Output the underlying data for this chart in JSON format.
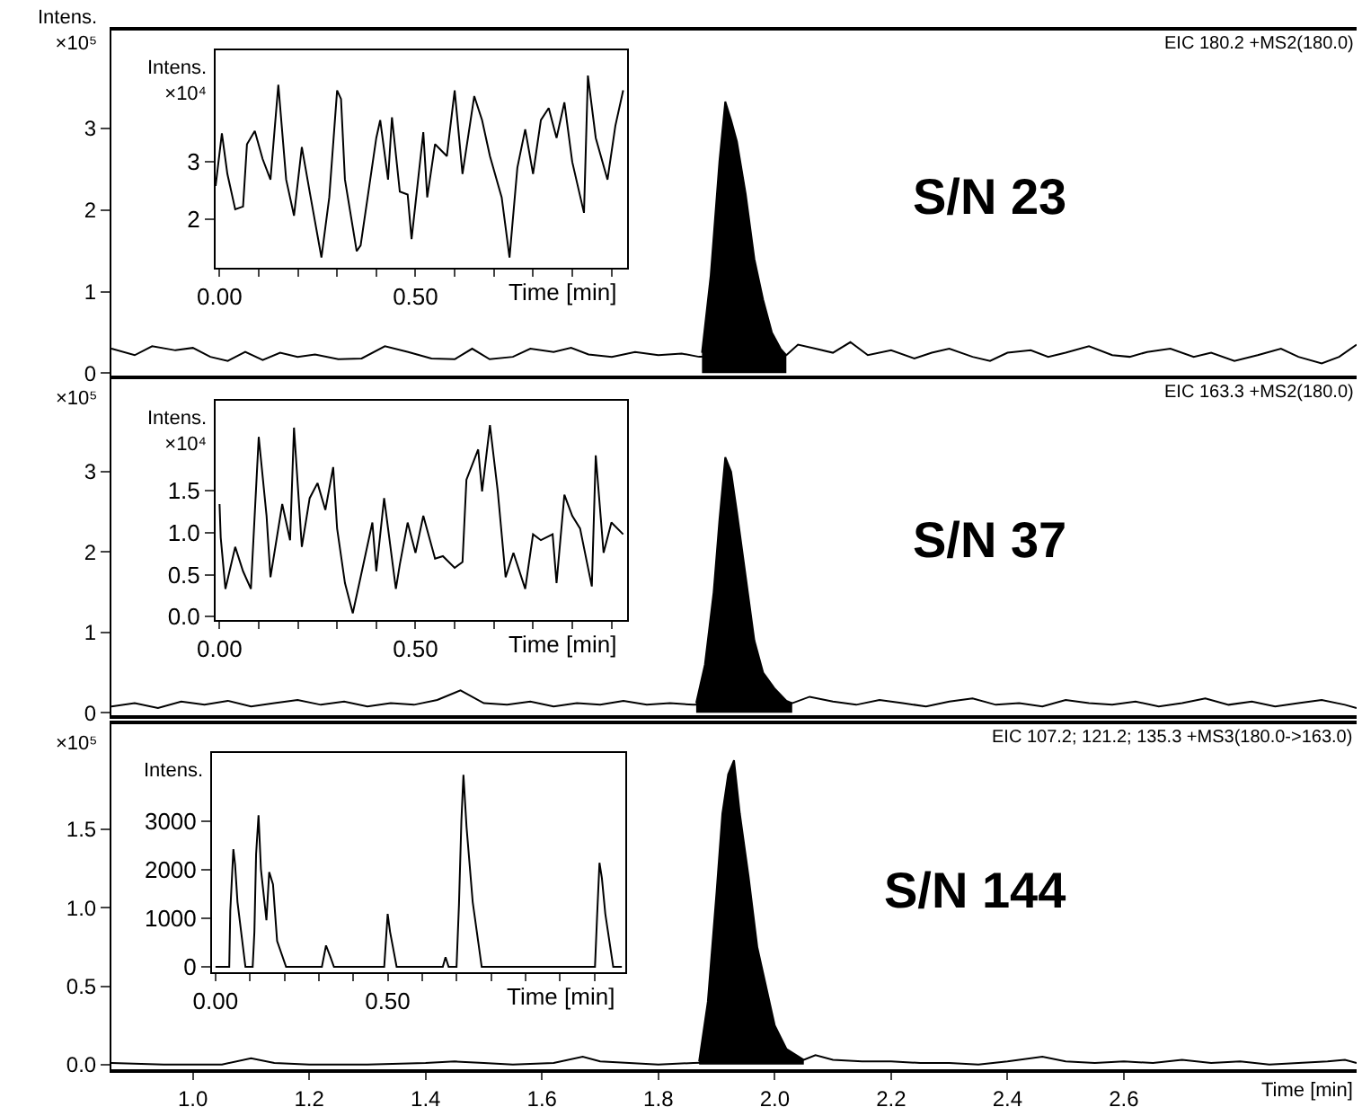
{
  "chart_data": [
    {
      "type": "line",
      "title": "EIC 180.2 +MS2(180.0)",
      "ylabel": "Intens. ×10⁵",
      "annotations": [
        "S/N 23"
      ],
      "xlim": [
        0.86,
        3.0
      ],
      "ylim": [
        -0.03,
        4.2
      ],
      "yticks": [
        0,
        1,
        2,
        3
      ],
      "tick_labels": "y",
      "series": [
        {
          "color": "#000000",
          "x": [
            0.86,
            0.9,
            0.93,
            0.97,
            1.0,
            1.03,
            1.06,
            1.09,
            1.12,
            1.15,
            1.18,
            1.21,
            1.25,
            1.29,
            1.33,
            1.37,
            1.41,
            1.45,
            1.48,
            1.51,
            1.55,
            1.58,
            1.62,
            1.65,
            1.68,
            1.72,
            1.76,
            1.8,
            1.84,
            1.87,
            2.02,
            2.04,
            2.07,
            2.1,
            2.13,
            2.16,
            2.2,
            2.24,
            2.27,
            2.3,
            2.34,
            2.37,
            2.4,
            2.44,
            2.47,
            2.5,
            2.54,
            2.58,
            2.61,
            2.64,
            2.68,
            2.72,
            2.75,
            2.79,
            2.83,
            2.87,
            2.9,
            2.94,
            2.97,
            3.0
          ],
          "values": [
            0.3,
            0.22,
            0.33,
            0.28,
            0.31,
            0.2,
            0.15,
            0.26,
            0.16,
            0.25,
            0.2,
            0.23,
            0.17,
            0.18,
            0.33,
            0.26,
            0.18,
            0.17,
            0.3,
            0.17,
            0.2,
            0.3,
            0.26,
            0.31,
            0.23,
            0.2,
            0.26,
            0.22,
            0.24,
            0.2,
            0.22,
            0.35,
            0.3,
            0.25,
            0.38,
            0.22,
            0.28,
            0.18,
            0.25,
            0.3,
            0.2,
            0.15,
            0.25,
            0.28,
            0.2,
            0.25,
            0.33,
            0.22,
            0.2,
            0.26,
            0.3,
            0.2,
            0.25,
            0.15,
            0.22,
            0.3,
            0.2,
            0.12,
            0.2,
            0.35
          ]
        },
        {
          "type": "area",
          "color": "#000000",
          "x": [
            1.875,
            1.89,
            1.905,
            1.915,
            1.925,
            1.935,
            1.95,
            1.965,
            1.98,
            1.995,
            2.01,
            2.02
          ],
          "values": [
            0.25,
            1.2,
            2.6,
            3.33,
            3.1,
            2.84,
            2.2,
            1.4,
            0.9,
            0.5,
            0.3,
            0.22
          ]
        }
      ]
    },
    {
      "type": "line",
      "ylabel": "Intens. ×10⁴",
      "xlabel": "Time [min]",
      "xlim": [
        -0.01,
        1.04
      ],
      "ylim": [
        1.15,
        4.95
      ],
      "xticks": [
        {
          "value": 0,
          "label": "0.00"
        },
        {
          "value": 0.1,
          "label": null
        },
        {
          "value": 0.2,
          "label": null
        },
        {
          "value": 0.3,
          "label": null
        },
        {
          "value": 0.4,
          "label": null
        },
        {
          "value": 0.5,
          "label": "0.50"
        },
        {
          "value": 0.6,
          "label": null
        },
        {
          "value": 0.7,
          "label": null
        },
        {
          "value": 0.8,
          "label": null
        },
        {
          "value": 0.9,
          "label": null
        },
        {
          "value": 1.0,
          "label": null
        }
      ],
      "yticks": [
        2,
        3
      ],
      "series": [
        {
          "color": "#000000",
          "x": [
            -0.01,
            0.006,
            0.02,
            0.04,
            0.06,
            0.07,
            0.09,
            0.11,
            0.13,
            0.15,
            0.17,
            0.19,
            0.21,
            0.23,
            0.26,
            0.28,
            0.3,
            0.31,
            0.32,
            0.35,
            0.36,
            0.38,
            0.4,
            0.41,
            0.43,
            0.44,
            0.46,
            0.48,
            0.49,
            0.52,
            0.53,
            0.55,
            0.58,
            0.6,
            0.62,
            0.65,
            0.67,
            0.69,
            0.72,
            0.74,
            0.76,
            0.78,
            0.8,
            0.82,
            0.84,
            0.86,
            0.88,
            0.9,
            0.93,
            0.94,
            0.96,
            0.99,
            1.01,
            1.03
          ],
          "values": [
            2.58,
            3.5,
            2.79,
            2.17,
            2.22,
            3.31,
            3.54,
            3.05,
            2.69,
            4.35,
            2.69,
            2.06,
            3.26,
            2.48,
            1.33,
            2.38,
            4.25,
            4.1,
            2.69,
            1.44,
            1.54,
            2.48,
            3.42,
            3.73,
            2.69,
            3.78,
            2.48,
            2.43,
            1.65,
            3.52,
            2.38,
            3.31,
            3.1,
            4.25,
            2.79,
            4.15,
            3.73,
            3.1,
            2.38,
            1.33,
            2.9,
            3.57,
            2.79,
            3.73,
            3.94,
            3.42,
            4.04,
            3.0,
            2.11,
            4.51,
            3.42,
            2.69,
            3.63,
            4.25
          ]
        }
      ]
    },
    {
      "type": "line",
      "title": "EIC 163.3 +MS2(180.0)",
      "ylabel": "×10⁵",
      "annotations": [
        "S/N 37"
      ],
      "xlim": [
        0.86,
        3.0
      ],
      "ylim": [
        -0.03,
        4.15
      ],
      "yticks": [
        0,
        1,
        2,
        3
      ],
      "tick_labels": "y",
      "series": [
        {
          "color": "#000000",
          "x": [
            0.86,
            0.9,
            0.94,
            0.98,
            1.02,
            1.06,
            1.1,
            1.14,
            1.18,
            1.22,
            1.26,
            1.3,
            1.34,
            1.38,
            1.42,
            1.46,
            1.5,
            1.54,
            1.58,
            1.62,
            1.66,
            1.7,
            1.74,
            1.78,
            1.82,
            1.86,
            2.03,
            2.06,
            2.1,
            2.14,
            2.18,
            2.22,
            2.26,
            2.3,
            2.34,
            2.38,
            2.42,
            2.46,
            2.5,
            2.54,
            2.58,
            2.62,
            2.66,
            2.7,
            2.74,
            2.78,
            2.82,
            2.86,
            2.9,
            2.94,
            2.98,
            3.0
          ],
          "values": [
            0.08,
            0.12,
            0.06,
            0.14,
            0.1,
            0.15,
            0.08,
            0.12,
            0.16,
            0.1,
            0.14,
            0.08,
            0.12,
            0.1,
            0.16,
            0.28,
            0.12,
            0.1,
            0.14,
            0.08,
            0.12,
            0.1,
            0.15,
            0.1,
            0.12,
            0.1,
            0.12,
            0.2,
            0.14,
            0.1,
            0.16,
            0.12,
            0.08,
            0.14,
            0.18,
            0.1,
            0.12,
            0.08,
            0.16,
            0.12,
            0.1,
            0.14,
            0.08,
            0.12,
            0.18,
            0.1,
            0.14,
            0.08,
            0.12,
            0.16,
            0.1,
            0.06
          ]
        },
        {
          "type": "area",
          "color": "#000000",
          "x": [
            1.865,
            1.88,
            1.895,
            1.905,
            1.915,
            1.925,
            1.935,
            1.95,
            1.965,
            1.98,
            2.0,
            2.02,
            2.03
          ],
          "values": [
            0.12,
            0.6,
            1.5,
            2.4,
            3.18,
            3.0,
            2.5,
            1.7,
            0.9,
            0.5,
            0.3,
            0.15,
            0.12
          ]
        }
      ]
    },
    {
      "type": "line",
      "ylabel": "Intens. ×10⁴",
      "xlabel": "Time [min]",
      "xlim": [
        -0.01,
        1.04
      ],
      "ylim": [
        -0.04,
        2.57
      ],
      "xticks": [
        {
          "value": 0,
          "label": "0.00"
        },
        {
          "value": 0.1,
          "label": null
        },
        {
          "value": 0.2,
          "label": null
        },
        {
          "value": 0.3,
          "label": null
        },
        {
          "value": 0.4,
          "label": null
        },
        {
          "value": 0.5,
          "label": "0.50"
        },
        {
          "value": 0.6,
          "label": null
        },
        {
          "value": 0.7,
          "label": null
        },
        {
          "value": 0.8,
          "label": null
        },
        {
          "value": 0.9,
          "label": null
        },
        {
          "value": 1.0,
          "label": null
        }
      ],
      "yticks": [
        {
          "value": 0,
          "label": "0.0"
        },
        {
          "value": 0.5,
          "label": "0.5"
        },
        {
          "value": 1,
          "label": "1.0"
        },
        {
          "value": 1.5,
          "label": "1.5"
        }
      ],
      "series": [
        {
          "color": "#000000",
          "x": [
            0,
            0.003,
            0.015,
            0.04,
            0.06,
            0.08,
            0.1,
            0.12,
            0.13,
            0.16,
            0.18,
            0.19,
            0.21,
            0.23,
            0.25,
            0.27,
            0.29,
            0.3,
            0.32,
            0.34,
            0.36,
            0.39,
            0.4,
            0.42,
            0.45,
            0.46,
            0.48,
            0.5,
            0.52,
            0.55,
            0.57,
            0.6,
            0.62,
            0.63,
            0.66,
            0.67,
            0.69,
            0.71,
            0.73,
            0.75,
            0.78,
            0.8,
            0.82,
            0.85,
            0.86,
            0.88,
            0.9,
            0.92,
            0.95,
            0.96,
            0.98,
            1.0,
            1.03
          ],
          "values": [
            1.34,
            0.94,
            0.33,
            0.83,
            0.54,
            0.33,
            2.14,
            1.2,
            0.47,
            1.34,
            0.91,
            2.25,
            0.83,
            1.41,
            1.59,
            1.27,
            1.78,
            1.05,
            0.4,
            0.04,
            0.47,
            1.12,
            0.54,
            1.41,
            0.33,
            0.62,
            1.12,
            0.76,
            1.2,
            0.69,
            0.72,
            0.58,
            0.65,
            1.63,
            1.99,
            1.49,
            2.28,
            1.49,
            0.47,
            0.76,
            0.33,
            0.98,
            0.91,
            0.98,
            0.4,
            1.45,
            1.2,
            1.05,
            0.36,
            1.92,
            0.76,
            1.12,
            0.98
          ]
        }
      ]
    },
    {
      "type": "line",
      "title": "EIC 107.2; 121.2; 135.3 +MS3(180.0->163.0)",
      "ylabel": "×10⁵",
      "xlabel": "Time [min]",
      "annotations": [
        "S/N 144"
      ],
      "xlim": [
        0.86,
        3.0
      ],
      "ylim": [
        -0.03,
        2.17
      ],
      "xticks": [
        {
          "value": 1.0,
          "label": "1.0"
        },
        {
          "value": 1.2,
          "label": "1.2"
        },
        {
          "value": 1.4,
          "label": "1.4"
        },
        {
          "value": 1.6,
          "label": "1.6"
        },
        {
          "value": 1.8,
          "label": "1.8"
        },
        {
          "value": 2.0,
          "label": "2.0"
        },
        {
          "value": 2.2,
          "label": "2.2"
        },
        {
          "value": 2.4,
          "label": "2.4"
        },
        {
          "value": 2.6,
          "label": "2.6"
        }
      ],
      "yticks": [
        {
          "value": 0,
          "label": "0.0"
        },
        {
          "value": 0.5,
          "label": "0.5"
        },
        {
          "value": 1,
          "label": "1.0"
        },
        {
          "value": 1.5,
          "label": "1.5"
        }
      ],
      "series": [
        {
          "color": "#000000",
          "x": [
            0.86,
            0.95,
            1.05,
            1.1,
            1.14,
            1.2,
            1.3,
            1.4,
            1.45,
            1.5,
            1.55,
            1.62,
            1.67,
            1.7,
            1.75,
            1.8,
            1.86,
            2.05,
            2.07,
            2.1,
            2.15,
            2.2,
            2.25,
            2.3,
            2.35,
            2.4,
            2.46,
            2.5,
            2.55,
            2.6,
            2.65,
            2.7,
            2.75,
            2.8,
            2.85,
            2.9,
            2.95,
            2.98,
            3.0
          ],
          "values": [
            0.01,
            0,
            0,
            0.04,
            0.01,
            0,
            0,
            0.01,
            0.02,
            0.01,
            0,
            0.01,
            0.05,
            0.02,
            0.01,
            0,
            0.01,
            0.03,
            0.06,
            0.03,
            0.02,
            0.02,
            0.01,
            0.01,
            0,
            0.02,
            0.05,
            0.02,
            0.01,
            0.02,
            0.01,
            0.03,
            0.01,
            0.02,
            0,
            0.01,
            0.02,
            0.03,
            0.01
          ]
        },
        {
          "type": "area",
          "color": "#000000",
          "x": [
            1.87,
            1.885,
            1.9,
            1.91,
            1.92,
            1.93,
            1.94,
            1.955,
            1.97,
            1.985,
            2.0,
            2.02,
            2.05
          ],
          "values": [
            0.02,
            0.4,
            1.1,
            1.6,
            1.85,
            1.94,
            1.6,
            1.2,
            0.75,
            0.5,
            0.25,
            0.1,
            0.03
          ]
        }
      ]
    },
    {
      "type": "line",
      "ylabel": "Intens.",
      "xlabel": "Time [min]",
      "xlim": [
        -0.01,
        1.19
      ],
      "ylim": [
        -110,
        4400
      ],
      "xticks": [
        {
          "value": 0,
          "label": "0.00"
        },
        {
          "value": 0.1,
          "label": null
        },
        {
          "value": 0.2,
          "label": null
        },
        {
          "value": 0.3,
          "label": null
        },
        {
          "value": 0.4,
          "label": null
        },
        {
          "value": 0.5,
          "label": "0.50"
        },
        {
          "value": 0.6,
          "label": null
        },
        {
          "value": 0.7,
          "label": null
        },
        {
          "value": 0.8,
          "label": null
        },
        {
          "value": 0.9,
          "label": null
        },
        {
          "value": 1.0,
          "label": null
        },
        {
          "value": 1.1,
          "label": null
        }
      ],
      "yticks": [
        0,
        1000,
        2000,
        3000
      ],
      "series": [
        {
          "color": "#000000",
          "x": [
            0,
            0.04,
            0.043,
            0.052,
            0.057,
            0.064,
            0.087,
            0.108,
            0.113,
            0.118,
            0.125,
            0.132,
            0.148,
            0.156,
            0.167,
            0.179,
            0.205,
            0.309,
            0.321,
            0.333,
            0.344,
            0.49,
            0.5,
            0.507,
            0.526,
            0.66,
            0.668,
            0.677,
            0.7,
            0.707,
            0.714,
            0.72,
            0.729,
            0.747,
            0.773,
            1.102,
            1.108,
            1.115,
            1.122,
            1.132,
            1.155,
            1.18
          ],
          "values": [
            0,
            0,
            1150,
            2420,
            2100,
            1330,
            0,
            0,
            720,
            2320,
            3120,
            2010,
            960,
            1950,
            1700,
            530,
            0,
            0,
            440,
            220,
            0,
            0,
            1090,
            720,
            0,
            0,
            200,
            0,
            0,
            1270,
            3000,
            3950,
            2880,
            1330,
            0,
            0,
            1020,
            2140,
            1830,
            1090,
            0,
            0
          ]
        }
      ]
    }
  ]
}
